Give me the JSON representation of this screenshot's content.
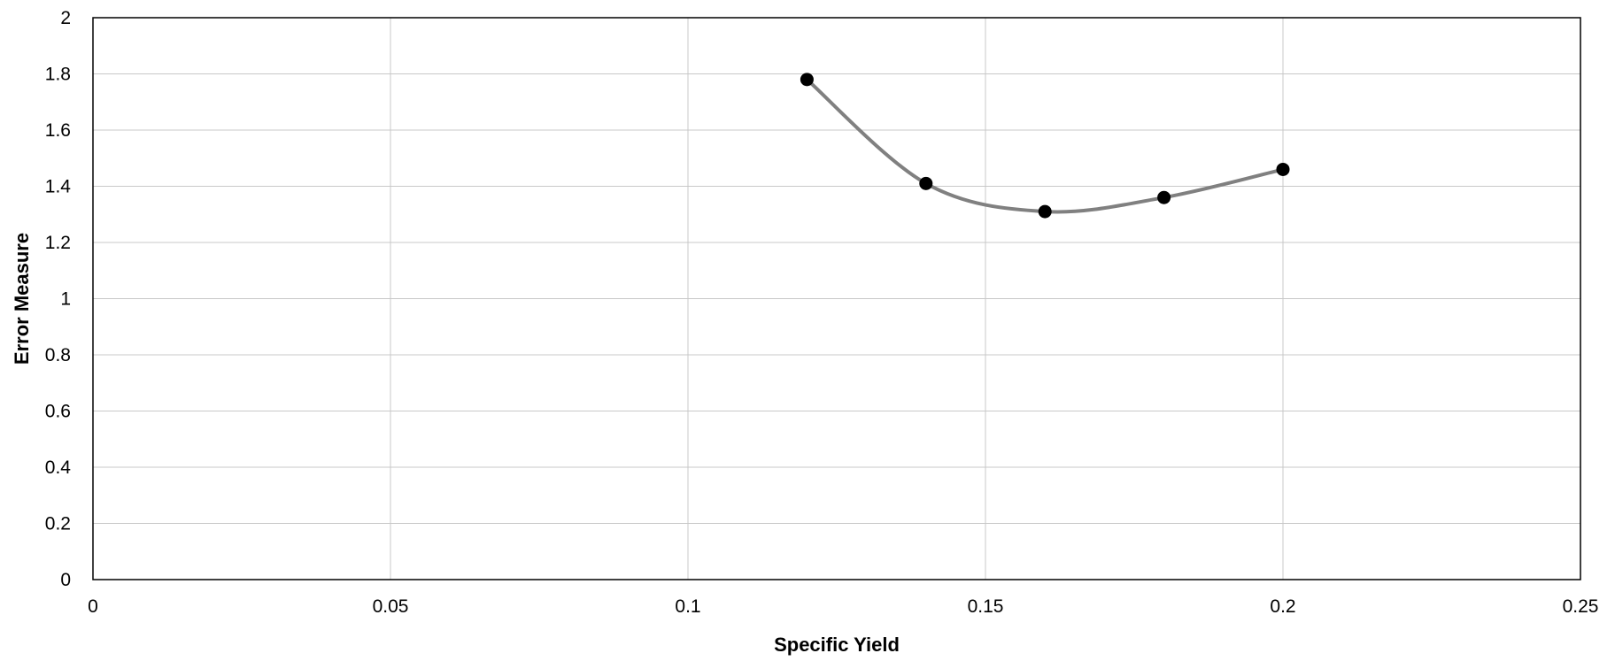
{
  "chart_data": {
    "type": "scatter",
    "title": "",
    "xlabel": "Specific Yield",
    "ylabel": "Error Measure",
    "xlim": [
      0,
      0.25
    ],
    "ylim": [
      0,
      2
    ],
    "x_ticks": [
      "0",
      "0.05",
      "0.1",
      "0.15",
      "0.2",
      "0.25"
    ],
    "y_ticks": [
      "0",
      "0.2",
      "0.4",
      "0.6",
      "0.8",
      "1",
      "1.2",
      "1.4",
      "1.6",
      "1.8",
      "2"
    ],
    "grid": true,
    "legend": "none",
    "series": [
      {
        "x": [
          0.12,
          0.14,
          0.16,
          0.18,
          0.2
        ],
        "y": [
          1.78,
          1.41,
          1.31,
          1.36,
          1.46
        ],
        "line": "smooth",
        "line_color": "#808080",
        "marker_color": "#000000"
      }
    ]
  }
}
